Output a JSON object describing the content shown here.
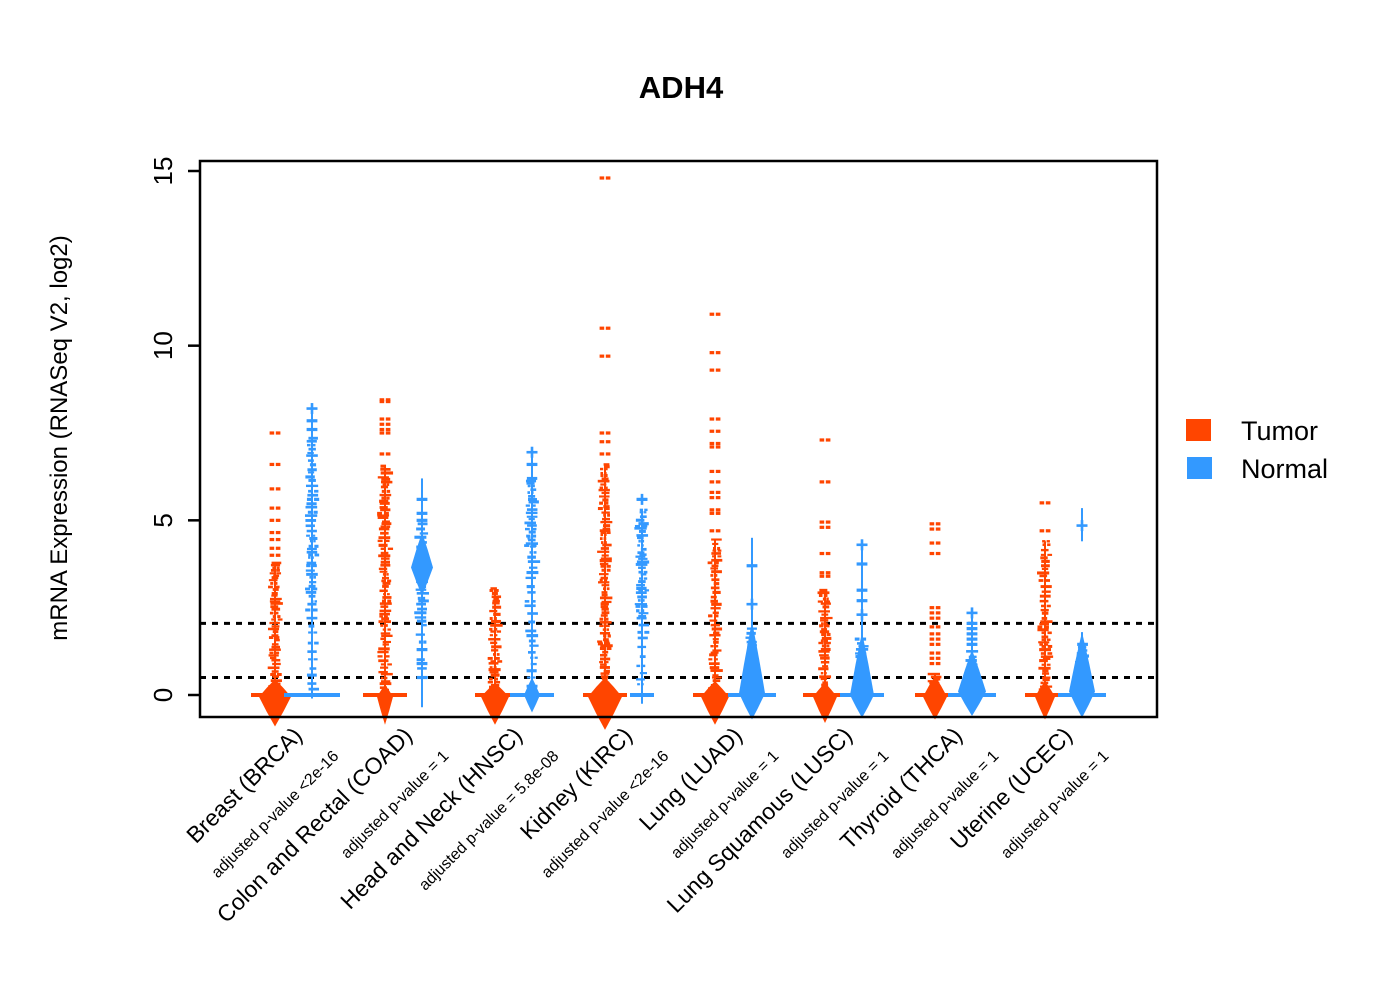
{
  "chart_data": {
    "type": "violin",
    "title": "ADH4",
    "ylabel": "mRNA Expression (RNASeq V2, log2)",
    "yticks": [
      0,
      5,
      10,
      15
    ],
    "ylim": [
      -1.2,
      15.4
    ],
    "grid": false,
    "threshold_lines": {
      "style": "dotted",
      "color": "#000000",
      "y_values": [
        2.05,
        0.5
      ]
    },
    "legend": {
      "position": "right",
      "entries": [
        {
          "label": "Tumor",
          "color": "#FF4500"
        },
        {
          "label": "Normal",
          "color": "#3399FF"
        }
      ]
    },
    "groups": [
      {
        "label": "Breast (BRCA)",
        "pvalue_label": "adjusted p-value <2e-16",
        "tumor": {
          "max": 7.5,
          "median": 0,
          "lines": [
            [
              -0.5,
              3.78
            ]
          ],
          "dense": [
            [
              0,
              3.78,
              3
            ]
          ],
          "outliers": [
            4.0,
            4.2,
            4.45,
            4.65,
            5.0,
            5.35,
            5.9,
            6.6,
            7.5
          ],
          "violin": {
            "top": 0.45,
            "peak": -0.05,
            "bottom": -0.9,
            "halfwidth": 16
          },
          "median_halfwidth": 24
        },
        "normal": {
          "max": 8.2,
          "median": 0,
          "lines": [
            [
              -0.1,
              8.2
            ]
          ],
          "dense": [
            [
              2.6,
              7.35,
              4
            ],
            [
              0.1,
              2.6,
              8
            ]
          ],
          "outliers": [
            7.6,
            7.85
          ],
          "crosses": [
            8.2
          ],
          "violin": null,
          "median_halfwidth": 28
        }
      },
      {
        "label": "Colon and Rectal (COAD)",
        "pvalue_label": "adjusted p-value = 1",
        "tumor": {
          "max": 8.45,
          "median": 0,
          "lines": [
            [
              -0.3,
              6.55
            ]
          ],
          "dense": [
            [
              0,
              6.55,
              3.2
            ]
          ],
          "outliers": [
            6.9,
            7.5,
            7.6,
            7.75,
            7.9,
            8.4,
            8.45
          ],
          "violin": {
            "top": 0.3,
            "peak": -0.05,
            "bottom": -0.85,
            "halfwidth": 8
          },
          "median_halfwidth": 22
        },
        "normal": {
          "max": 6.2,
          "median": 3.65,
          "lines": [
            [
              -0.35,
              6.2
            ]
          ],
          "dense": [
            [
              2.0,
              4.9,
              4
            ],
            [
              0.4,
              2.0,
              9
            ]
          ],
          "outliers": [
            5.6,
            5.2,
            5.0,
            1.3,
            0.9,
            0.5
          ],
          "violin": {
            "top": 4.65,
            "peak": 3.65,
            "bottom": 2.85,
            "halfwidth": 11
          },
          "median_halfwidth": 0
        }
      },
      {
        "label": "Head and Neck (HNSC)",
        "pvalue_label": "adjusted p-value = 5.8e-08",
        "tumor": {
          "max": 3.05,
          "median": 0,
          "lines": [
            [
              -0.4,
              3.05
            ]
          ],
          "dense": [
            [
              0,
              3.05,
              3
            ]
          ],
          "outliers": [],
          "violin": {
            "top": 0.35,
            "peak": -0.05,
            "bottom": -0.85,
            "halfwidth": 14
          },
          "median_halfwidth": 20
        },
        "normal": {
          "max": 7.0,
          "median": 0,
          "lines": [
            [
              -0.15,
              6.95
            ]
          ],
          "dense": [
            [
              4.25,
              6.2,
              3
            ],
            [
              0,
              4.25,
              6.5
            ]
          ],
          "outliers": [
            6.6
          ],
          "crosses": [
            6.95
          ],
          "violin": {
            "top": 0.5,
            "peak": 0,
            "bottom": -0.5,
            "halfwidth": 8
          },
          "median_halfwidth": 22
        }
      },
      {
        "label": "Kidney (KIRC)",
        "pvalue_label": "adjusted p-value <2e-16",
        "tumor": {
          "max": 14.8,
          "median": 0,
          "lines": [
            [
              -0.5,
              6.6
            ]
          ],
          "dense": [
            [
              0,
              6.6,
              3
            ]
          ],
          "outliers": [
            6.9,
            7.25,
            7.5,
            9.7,
            10.5,
            14.8
          ],
          "violin": {
            "top": 0.5,
            "peak": -0.05,
            "bottom": -1.0,
            "halfwidth": 17
          },
          "median_halfwidth": 22
        },
        "normal": {
          "max": 5.6,
          "median": 0,
          "lines": [
            [
              -0.25,
              5.3
            ]
          ],
          "dense": [
            [
              2.2,
              5.3,
              3.2
            ],
            [
              0.2,
              2.2,
              7
            ]
          ],
          "outliers": [
            5.6
          ],
          "crosses": [
            5.6
          ],
          "violin": null,
          "median_halfwidth": 12
        }
      },
      {
        "label": "Lung (LUAD)",
        "pvalue_label": "adjusted p-value = 1",
        "tumor": {
          "max": 10.9,
          "median": 0,
          "lines": [
            [
              -0.4,
              4.45
            ]
          ],
          "dense": [
            [
              0,
              4.45,
              3.4
            ]
          ],
          "outliers": [
            4.7,
            5.2,
            5.3,
            5.65,
            5.8,
            6.1,
            6.4,
            7.1,
            7.2,
            7.55,
            7.9,
            9.3,
            9.8,
            10.9
          ],
          "violin": {
            "top": 0.4,
            "peak": -0.05,
            "bottom": -0.85,
            "halfwidth": 14
          },
          "median_halfwidth": 22
        },
        "normal": {
          "max": 4.5,
          "median": 0,
          "lines": [
            [
              -0.2,
              4.5
            ]
          ],
          "dense": [
            [
              0,
              1.9,
              3.4
            ]
          ],
          "outliers": [
            3.7
          ],
          "crosses": [
            2.6
          ],
          "violin": {
            "top": 2.1,
            "peak": 0.05,
            "bottom": -0.7,
            "halfwidth": 13
          },
          "median_halfwidth": 24
        }
      },
      {
        "label": "Lung Squamous (LUSC)",
        "pvalue_label": "adjusted p-value = 1",
        "tumor": {
          "max": 7.3,
          "median": 0,
          "lines": [
            [
              -0.4,
              3.0
            ]
          ],
          "dense": [
            [
              0,
              3.0,
              3.2
            ]
          ],
          "outliers": [
            3.4,
            3.5,
            4.05,
            4.8,
            4.95,
            6.1,
            7.3
          ],
          "violin": {
            "top": 0.35,
            "peak": -0.05,
            "bottom": -0.8,
            "halfwidth": 12
          },
          "median_halfwidth": 22
        },
        "normal": {
          "max": 4.3,
          "median": 0,
          "lines": [
            [
              -0.2,
              4.3
            ]
          ],
          "dense": [
            [
              0,
              1.6,
              3.6
            ]
          ],
          "outliers": [
            3.75,
            3.0,
            2.7
          ],
          "crosses": [
            4.3,
            2.3
          ],
          "violin": {
            "top": 1.8,
            "peak": 0,
            "bottom": -0.65,
            "halfwidth": 12
          },
          "median_halfwidth": 22
        }
      },
      {
        "label": "Thyroid (THCA)",
        "pvalue_label": "adjusted p-value = 1",
        "tumor": {
          "max": 4.9,
          "median": 0,
          "lines": [
            [
              -0.3,
              0.6
            ]
          ],
          "dense": [
            [
              0,
              0.6,
              3
            ]
          ],
          "outliers": [
            0.9,
            1.05,
            1.2,
            1.45,
            1.6,
            1.75,
            1.95,
            2.2,
            2.35,
            2.5,
            4.05,
            4.35,
            4.75,
            4.9
          ],
          "violin": {
            "top": 0.55,
            "peak": -0.05,
            "bottom": -0.7,
            "halfwidth": 12
          },
          "median_halfwidth": 20
        },
        "normal": {
          "max": 2.4,
          "median": 0,
          "lines": [
            [
              -0.15,
              2.4
            ]
          ],
          "dense": [
            [
              0,
              1.25,
              4
            ]
          ],
          "outliers": [
            2.05,
            1.9,
            1.75,
            1.6,
            1.45
          ],
          "crosses": [
            2.35
          ],
          "violin": {
            "top": 1.3,
            "peak": 0.1,
            "bottom": -0.6,
            "halfwidth": 14
          },
          "median_halfwidth": 24
        }
      },
      {
        "label": "Uterine (UCEC)",
        "pvalue_label": "adjusted p-value = 1",
        "tumor": {
          "max": 5.5,
          "median": 0,
          "lines": [
            [
              -0.3,
              4.4
            ]
          ],
          "dense": [
            [
              2.1,
              4.4,
              4.5
            ],
            [
              0,
              2.1,
              3
            ]
          ],
          "outliers": [
            4.7,
            5.5
          ],
          "violin": {
            "top": 0.4,
            "peak": -0.05,
            "bottom": -0.7,
            "halfwidth": 10
          },
          "median_halfwidth": 20
        },
        "normal": {
          "max": 5.35,
          "median": 0,
          "lines": [
            [
              -0.2,
              1.8
            ],
            [
              4.4,
              5.35
            ]
          ],
          "dense": [
            [
              0,
              1.45,
              3.4
            ]
          ],
          "outliers": [],
          "crosses": [
            4.85
          ],
          "violin": {
            "top": 1.8,
            "peak": 0.1,
            "bottom": -0.65,
            "halfwidth": 13
          },
          "median_halfwidth": 24
        }
      }
    ]
  }
}
